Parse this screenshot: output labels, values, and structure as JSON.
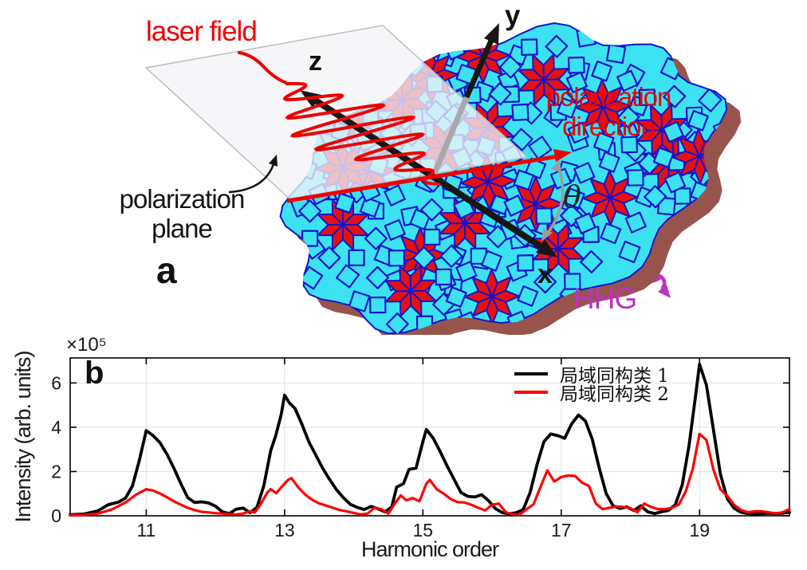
{
  "panel_a": {
    "panel_label": "a",
    "laser_field_label": "laser field",
    "polarization_plane_label": [
      "polarization",
      "plane"
    ],
    "polarization_direction_label": [
      "polarization",
      "direction"
    ],
    "hhg_label": "HHG",
    "theta_symbol": "θ",
    "x_axis_label": "x",
    "y_axis_label": "y",
    "z_axis_label": "z",
    "colors": {
      "laser_red": "#ee0000",
      "hhg_magenta": "#bd33bd",
      "tile_cyan": "#3de2f2",
      "tile_stroke_blue": "#1414cc",
      "star_red": "#e51111",
      "shadow_brown": "#98544c",
      "axis_black": "#171717",
      "axis_gray": "#a9a9a9",
      "arc_gray": "#9c9c9c",
      "plane_fill": "rgba(243,243,247,0.78)",
      "plane_border": "#bcbcc2"
    }
  },
  "panel_b": {
    "panel_label": "b",
    "y_exponent_label": "×10⁵"
  },
  "chart_data": {
    "type": "line",
    "title": "",
    "xlabel": "Harmonic order",
    "ylabel": "Intensity (arb. units)",
    "xlim": [
      9.9,
      20.3
    ],
    "ylim": [
      0,
      7.13
    ],
    "xticks": [
      11,
      13,
      15,
      17,
      19
    ],
    "yticks": [
      0,
      2,
      4,
      6
    ],
    "grid": true,
    "legend_position": "top-right-inside",
    "y_scale_factor": "1e5",
    "series": [
      {
        "name": "局域同构类 1",
        "color": "#000000",
        "points": [
          [
            9.9,
            0.05
          ],
          [
            10.1,
            0.08
          ],
          [
            10.3,
            0.22
          ],
          [
            10.45,
            0.5
          ],
          [
            10.6,
            0.62
          ],
          [
            10.7,
            0.8
          ],
          [
            10.8,
            1.35
          ],
          [
            10.9,
            2.5
          ],
          [
            11.0,
            3.85
          ],
          [
            11.1,
            3.62
          ],
          [
            11.2,
            3.3
          ],
          [
            11.3,
            2.78
          ],
          [
            11.4,
            2.15
          ],
          [
            11.5,
            1.45
          ],
          [
            11.6,
            0.82
          ],
          [
            11.7,
            0.6
          ],
          [
            11.8,
            0.63
          ],
          [
            11.9,
            0.58
          ],
          [
            12.0,
            0.44
          ],
          [
            12.1,
            0.18
          ],
          [
            12.2,
            0.1
          ],
          [
            12.3,
            0.3
          ],
          [
            12.4,
            0.35
          ],
          [
            12.5,
            0.14
          ],
          [
            12.6,
            0.38
          ],
          [
            12.7,
            1.35
          ],
          [
            12.8,
            2.95
          ],
          [
            12.87,
            3.6
          ],
          [
            12.95,
            4.55
          ],
          [
            13.0,
            5.45
          ],
          [
            13.07,
            5.1
          ],
          [
            13.15,
            4.85
          ],
          [
            13.25,
            4.15
          ],
          [
            13.35,
            3.35
          ],
          [
            13.45,
            2.75
          ],
          [
            13.55,
            2.15
          ],
          [
            13.65,
            1.65
          ],
          [
            13.75,
            1.18
          ],
          [
            13.85,
            0.82
          ],
          [
            13.95,
            0.52
          ],
          [
            14.05,
            0.38
          ],
          [
            14.15,
            0.28
          ],
          [
            14.25,
            0.42
          ],
          [
            14.35,
            0.32
          ],
          [
            14.45,
            0.18
          ],
          [
            14.55,
            0.4
          ],
          [
            14.62,
            1.3
          ],
          [
            14.72,
            1.45
          ],
          [
            14.8,
            2.1
          ],
          [
            14.9,
            2.15
          ],
          [
            15.0,
            3.35
          ],
          [
            15.05,
            3.9
          ],
          [
            15.15,
            3.5
          ],
          [
            15.25,
            2.9
          ],
          [
            15.35,
            2.25
          ],
          [
            15.45,
            1.65
          ],
          [
            15.55,
            1.05
          ],
          [
            15.65,
            0.88
          ],
          [
            15.75,
            0.85
          ],
          [
            15.85,
            0.95
          ],
          [
            15.95,
            0.68
          ],
          [
            16.05,
            0.32
          ],
          [
            16.15,
            0.14
          ],
          [
            16.25,
            0.09
          ],
          [
            16.35,
            0.14
          ],
          [
            16.45,
            0.28
          ],
          [
            16.55,
            1.05
          ],
          [
            16.65,
            2.3
          ],
          [
            16.75,
            3.35
          ],
          [
            16.85,
            3.7
          ],
          [
            16.95,
            3.62
          ],
          [
            17.05,
            3.5
          ],
          [
            17.15,
            4.15
          ],
          [
            17.25,
            4.55
          ],
          [
            17.35,
            4.28
          ],
          [
            17.45,
            3.45
          ],
          [
            17.55,
            2.15
          ],
          [
            17.65,
            1.0
          ],
          [
            17.75,
            0.45
          ],
          [
            17.85,
            0.33
          ],
          [
            17.95,
            0.4
          ],
          [
            18.05,
            0.24
          ],
          [
            18.15,
            0.45
          ],
          [
            18.25,
            0.18
          ],
          [
            18.35,
            0.1
          ],
          [
            18.45,
            0.18
          ],
          [
            18.55,
            0.24
          ],
          [
            18.65,
            0.5
          ],
          [
            18.75,
            1.4
          ],
          [
            18.85,
            3.2
          ],
          [
            18.95,
            5.6
          ],
          [
            19.0,
            6.85
          ],
          [
            19.1,
            5.9
          ],
          [
            19.2,
            3.9
          ],
          [
            19.3,
            1.9
          ],
          [
            19.4,
            0.78
          ],
          [
            19.5,
            0.34
          ],
          [
            19.6,
            0.16
          ],
          [
            19.7,
            0.1
          ],
          [
            19.8,
            0.08
          ],
          [
            19.9,
            0.1
          ],
          [
            20.0,
            0.12
          ],
          [
            20.1,
            0.1
          ],
          [
            20.2,
            0.12
          ],
          [
            20.3,
            0.16
          ]
        ]
      },
      {
        "name": "局域同构类 2",
        "color": "#ff0000",
        "points": [
          [
            9.9,
            0.02
          ],
          [
            10.1,
            0.04
          ],
          [
            10.3,
            0.1
          ],
          [
            10.5,
            0.28
          ],
          [
            10.7,
            0.6
          ],
          [
            10.85,
            0.95
          ],
          [
            11.0,
            1.2
          ],
          [
            11.1,
            1.14
          ],
          [
            11.2,
            1.0
          ],
          [
            11.3,
            0.84
          ],
          [
            11.4,
            0.65
          ],
          [
            11.5,
            0.5
          ],
          [
            11.6,
            0.36
          ],
          [
            11.7,
            0.26
          ],
          [
            11.8,
            0.18
          ],
          [
            11.9,
            0.15
          ],
          [
            12.0,
            0.12
          ],
          [
            12.1,
            0.1
          ],
          [
            12.2,
            0.08
          ],
          [
            12.3,
            0.06
          ],
          [
            12.4,
            0.1
          ],
          [
            12.5,
            0.2
          ],
          [
            12.57,
            0.15
          ],
          [
            12.65,
            0.5
          ],
          [
            12.75,
            1.05
          ],
          [
            12.8,
            1.2
          ],
          [
            12.88,
            1.02
          ],
          [
            12.95,
            1.28
          ],
          [
            13.05,
            1.62
          ],
          [
            13.1,
            1.7
          ],
          [
            13.2,
            1.28
          ],
          [
            13.3,
            0.95
          ],
          [
            13.4,
            0.72
          ],
          [
            13.5,
            0.56
          ],
          [
            13.6,
            0.46
          ],
          [
            13.7,
            0.36
          ],
          [
            13.8,
            0.26
          ],
          [
            13.9,
            0.2
          ],
          [
            14.0,
            0.13
          ],
          [
            14.1,
            0.06
          ],
          [
            14.2,
            0.1
          ],
          [
            14.3,
            0.36
          ],
          [
            14.4,
            0.3
          ],
          [
            14.5,
            0.1
          ],
          [
            14.6,
            0.58
          ],
          [
            14.68,
            0.92
          ],
          [
            14.76,
            0.7
          ],
          [
            14.85,
            0.8
          ],
          [
            14.95,
            0.66
          ],
          [
            15.05,
            1.45
          ],
          [
            15.1,
            1.62
          ],
          [
            15.2,
            1.2
          ],
          [
            15.3,
            1.0
          ],
          [
            15.4,
            0.76
          ],
          [
            15.5,
            0.62
          ],
          [
            15.6,
            0.6
          ],
          [
            15.7,
            0.5
          ],
          [
            15.8,
            0.36
          ],
          [
            15.9,
            0.24
          ],
          [
            16.0,
            0.5
          ],
          [
            16.1,
            0.55
          ],
          [
            16.2,
            0.16
          ],
          [
            16.3,
            0.08
          ],
          [
            16.4,
            0.05
          ],
          [
            16.5,
            0.3
          ],
          [
            16.6,
            0.52
          ],
          [
            16.7,
            1.3
          ],
          [
            16.8,
            2.05
          ],
          [
            16.9,
            1.55
          ],
          [
            17.0,
            1.75
          ],
          [
            17.1,
            1.82
          ],
          [
            17.2,
            1.8
          ],
          [
            17.3,
            1.5
          ],
          [
            17.4,
            1.35
          ],
          [
            17.5,
            0.55
          ],
          [
            17.6,
            0.3
          ],
          [
            17.7,
            0.36
          ],
          [
            17.8,
            0.42
          ],
          [
            17.9,
            0.4
          ],
          [
            18.0,
            0.35
          ],
          [
            18.1,
            0.16
          ],
          [
            18.2,
            0.55
          ],
          [
            18.3,
            0.4
          ],
          [
            18.4,
            0.3
          ],
          [
            18.5,
            0.3
          ],
          [
            18.6,
            0.36
          ],
          [
            18.7,
            0.5
          ],
          [
            18.8,
            1.1
          ],
          [
            18.9,
            2.1
          ],
          [
            19.0,
            3.7
          ],
          [
            19.1,
            3.42
          ],
          [
            19.2,
            2.1
          ],
          [
            19.3,
            1.2
          ],
          [
            19.4,
            0.9
          ],
          [
            19.5,
            0.5
          ],
          [
            19.6,
            0.26
          ],
          [
            19.7,
            0.16
          ],
          [
            19.8,
            0.2
          ],
          [
            19.9,
            0.2
          ],
          [
            20.0,
            0.16
          ],
          [
            20.1,
            0.1
          ],
          [
            20.2,
            0.16
          ],
          [
            20.3,
            0.3
          ]
        ]
      }
    ]
  }
}
